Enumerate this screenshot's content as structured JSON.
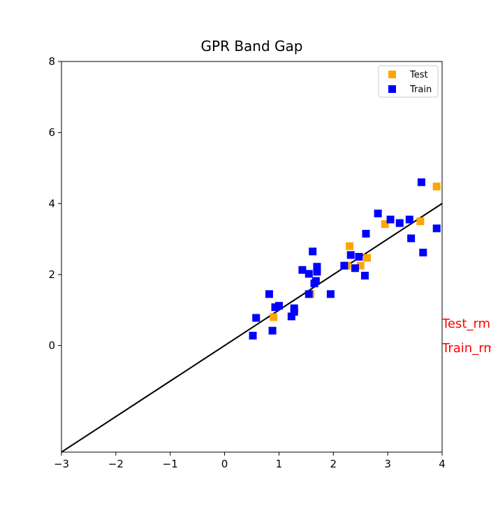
{
  "chart_data": {
    "type": "scatter",
    "title": "GPR Band Gap",
    "xlabel": "",
    "ylabel": "",
    "xlim": [
      -3,
      4
    ],
    "ylim": [
      -3,
      8
    ],
    "xticks": [
      -3,
      -2,
      -1,
      0,
      1,
      2,
      3,
      4
    ],
    "xtick_labels": [
      "−3",
      "−2",
      "−1",
      "0",
      "1",
      "2",
      "3",
      "4"
    ],
    "yticks": [
      0,
      2,
      4,
      6,
      8
    ],
    "ytick_labels": [
      "0",
      "2",
      "4",
      "6",
      "8"
    ],
    "grid": false,
    "legend": {
      "placement": "top-right",
      "entries": [
        "Test",
        "Train"
      ]
    },
    "reference_line": {
      "x": [
        -3,
        4
      ],
      "y": [
        -3,
        4
      ],
      "color": "#000000"
    },
    "series": [
      {
        "name": "Test",
        "color": "#FFA500",
        "marker": "square",
        "points": [
          [
            0.9,
            0.8
          ],
          [
            2.3,
            2.8
          ],
          [
            2.5,
            2.25
          ],
          [
            2.62,
            2.47
          ],
          [
            2.25,
            2.25
          ],
          [
            2.95,
            3.42
          ],
          [
            3.6,
            3.5
          ],
          [
            3.9,
            4.48
          ],
          [
            1.58,
            1.45
          ]
        ]
      },
      {
        "name": "Train",
        "color": "#0000FF",
        "marker": "square",
        "points": [
          [
            0.52,
            0.28
          ],
          [
            0.58,
            0.78
          ],
          [
            0.82,
            1.45
          ],
          [
            0.88,
            0.42
          ],
          [
            0.93,
            1.08
          ],
          [
            1.0,
            1.12
          ],
          [
            1.23,
            0.82
          ],
          [
            1.28,
            1.05
          ],
          [
            1.28,
            0.95
          ],
          [
            1.43,
            2.13
          ],
          [
            1.55,
            2.02
          ],
          [
            1.55,
            1.45
          ],
          [
            1.62,
            2.65
          ],
          [
            1.65,
            1.75
          ],
          [
            1.68,
            1.82
          ],
          [
            1.7,
            2.22
          ],
          [
            1.7,
            2.08
          ],
          [
            1.95,
            1.45
          ],
          [
            2.2,
            2.25
          ],
          [
            2.32,
            2.55
          ],
          [
            2.4,
            2.18
          ],
          [
            2.47,
            2.5
          ],
          [
            2.58,
            1.97
          ],
          [
            2.6,
            3.15
          ],
          [
            2.82,
            3.72
          ],
          [
            3.05,
            3.55
          ],
          [
            3.22,
            3.45
          ],
          [
            3.4,
            3.55
          ],
          [
            3.43,
            3.02
          ],
          [
            3.62,
            4.6
          ],
          [
            3.65,
            2.62
          ],
          [
            3.9,
            3.3
          ]
        ]
      }
    ],
    "annotations": [
      {
        "text": "Test_rm",
        "color": "#FF0000"
      },
      {
        "text": "Train_rm",
        "color": "#FF0000"
      }
    ]
  }
}
